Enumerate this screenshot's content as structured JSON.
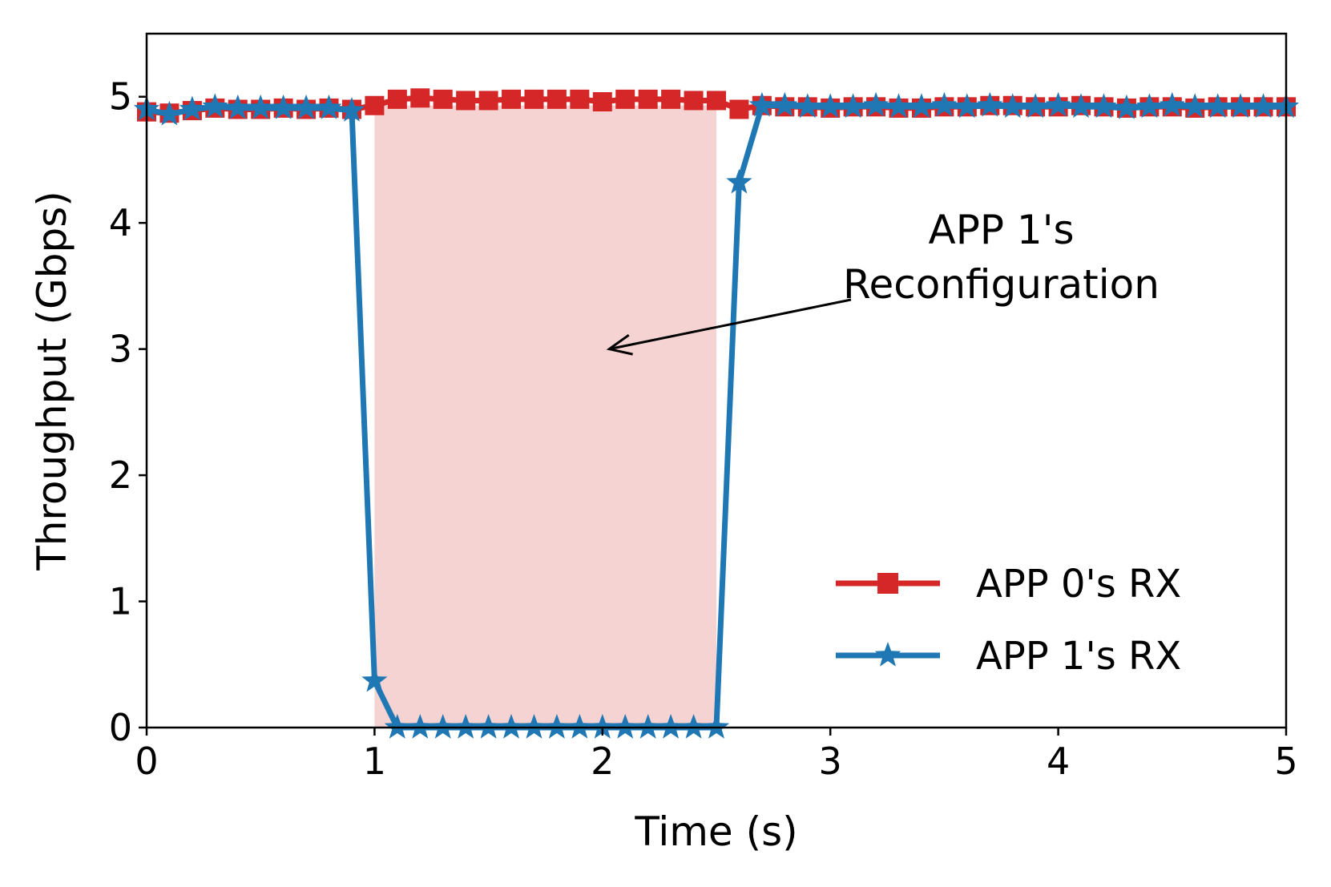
{
  "chart_data": {
    "type": "line",
    "title": "",
    "xlabel": "Time (s)",
    "ylabel": "Throughput (Gbps)",
    "xlim": [
      0,
      5
    ],
    "ylim": [
      0,
      5.5
    ],
    "xticks": [
      "0",
      "1",
      "2",
      "3",
      "4",
      "5"
    ],
    "yticks": [
      "0",
      "1",
      "2",
      "3",
      "4",
      "5"
    ],
    "grid": false,
    "legend_position": "lower-right",
    "shaded_region": {
      "x_start": 1.0,
      "x_end": 2.5,
      "color": "#f5d3d3"
    },
    "annotation": {
      "lines": [
        "APP 1's",
        "Reconfiguration"
      ],
      "text_at": [
        3.75,
        3.75
      ],
      "arrow_to": [
        2.03,
        3.0
      ]
    },
    "series": [
      {
        "name": "APP 0's RX",
        "color": "#d62728",
        "marker": "square",
        "x": [
          0,
          0.1,
          0.2,
          0.3,
          0.4,
          0.5,
          0.6,
          0.7,
          0.8,
          0.9,
          1.0,
          1.1,
          1.2,
          1.3,
          1.4,
          1.5,
          1.6,
          1.7,
          1.8,
          1.9,
          2.0,
          2.1,
          2.2,
          2.3,
          2.4,
          2.5,
          2.6,
          2.7,
          2.8,
          2.9,
          3.0,
          3.1,
          3.2,
          3.3,
          3.4,
          3.5,
          3.6,
          3.7,
          3.8,
          3.9,
          4.0,
          4.1,
          4.2,
          4.3,
          4.4,
          4.5,
          4.6,
          4.7,
          4.8,
          4.9,
          5.0
        ],
        "y": [
          4.88,
          4.87,
          4.89,
          4.91,
          4.9,
          4.9,
          4.91,
          4.9,
          4.91,
          4.9,
          4.93,
          4.98,
          4.99,
          4.98,
          4.97,
          4.97,
          4.98,
          4.98,
          4.98,
          4.98,
          4.96,
          4.98,
          4.98,
          4.98,
          4.97,
          4.97,
          4.9,
          4.93,
          4.92,
          4.92,
          4.91,
          4.92,
          4.92,
          4.91,
          4.91,
          4.92,
          4.92,
          4.93,
          4.93,
          4.92,
          4.92,
          4.93,
          4.92,
          4.91,
          4.92,
          4.92,
          4.91,
          4.92,
          4.92,
          4.92,
          4.92
        ]
      },
      {
        "name": "APP 1's RX",
        "color": "#1f77b4",
        "marker": "star",
        "x": [
          0,
          0.1,
          0.2,
          0.3,
          0.4,
          0.5,
          0.6,
          0.7,
          0.8,
          0.9,
          1.0,
          1.1,
          1.2,
          1.3,
          1.4,
          1.5,
          1.6,
          1.7,
          1.8,
          1.9,
          2.0,
          2.1,
          2.2,
          2.3,
          2.4,
          2.5,
          2.6,
          2.7,
          2.8,
          2.9,
          3.0,
          3.1,
          3.2,
          3.3,
          3.4,
          3.5,
          3.6,
          3.7,
          3.8,
          3.9,
          4.0,
          4.1,
          4.2,
          4.3,
          4.4,
          4.5,
          4.6,
          4.7,
          4.8,
          4.9,
          5.0
        ],
        "y": [
          4.9,
          4.86,
          4.9,
          4.92,
          4.91,
          4.91,
          4.91,
          4.91,
          4.91,
          4.89,
          0.37,
          0.0,
          0.0,
          0.0,
          0.0,
          0.0,
          0.0,
          0.0,
          0.0,
          0.0,
          0.0,
          0.0,
          0.0,
          0.0,
          0.0,
          0.0,
          4.32,
          4.93,
          4.93,
          4.92,
          4.92,
          4.92,
          4.93,
          4.92,
          4.92,
          4.93,
          4.92,
          4.93,
          4.92,
          4.92,
          4.93,
          4.92,
          4.92,
          4.91,
          4.92,
          4.93,
          4.92,
          4.92,
          4.92,
          4.92,
          4.92
        ]
      }
    ]
  }
}
